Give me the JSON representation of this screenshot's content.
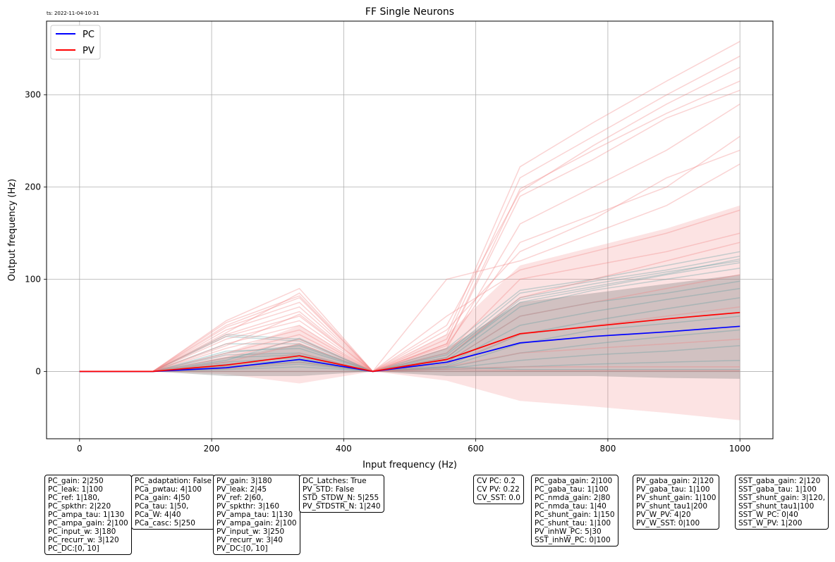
{
  "timestamp": "ts: 2022-11-04-10-31",
  "colors": {
    "pc_mean": "#0000ff",
    "pv_mean": "#ff0000",
    "pc_trials": "#5f9ea0",
    "pv_trials": "#f08080",
    "pc_band": "#808080",
    "pv_band": "#f08080",
    "grid": "#b0b0b0"
  },
  "chart_data": {
    "type": "line",
    "title": "FF Single Neurons",
    "xlabel": "Input frequency (Hz)",
    "ylabel": "Output frequency (Hz)",
    "xlim": [
      -50,
      1050
    ],
    "ylim": [
      -73,
      380
    ],
    "xticks": [
      0,
      200,
      400,
      600,
      800,
      1000
    ],
    "yticks": [
      0,
      100,
      200,
      300
    ],
    "grid": true,
    "legend_position": "top-left",
    "x": [
      0,
      111,
      222,
      333,
      444,
      556,
      667,
      778,
      889,
      1000
    ],
    "series": [
      {
        "name": "PC",
        "values": [
          0,
          0,
          4,
          13,
          0,
          10,
          31,
          38,
          43,
          49
        ]
      },
      {
        "name": "PV",
        "values": [
          0,
          0,
          7,
          17,
          0,
          13,
          41,
          49,
          57,
          64
        ]
      }
    ],
    "bands": [
      {
        "for": "PC",
        "lower": [
          0,
          0,
          -5,
          -5,
          0,
          -5,
          -5,
          -5,
          -7,
          -8
        ],
        "upper": [
          0,
          0,
          15,
          30,
          0,
          25,
          75,
          85,
          95,
          105
        ]
      },
      {
        "for": "PV",
        "lower": [
          0,
          0,
          -3,
          -13,
          0,
          -10,
          -32,
          -38,
          -45,
          -53
        ],
        "upper": [
          0,
          0,
          20,
          50,
          0,
          40,
          115,
          135,
          155,
          180
        ]
      }
    ],
    "trials": {
      "PC": [
        [
          0,
          0,
          40,
          35,
          0,
          20,
          85,
          98,
          110,
          125
        ],
        [
          0,
          0,
          38,
          33,
          0,
          18,
          80,
          95,
          108,
          120
        ],
        [
          0,
          0,
          30,
          30,
          0,
          15,
          75,
          90,
          105,
          118
        ],
        [
          0,
          0,
          22,
          25,
          0,
          12,
          70,
          88,
          100,
          112
        ],
        [
          0,
          0,
          18,
          20,
          0,
          10,
          60,
          75,
          85,
          98
        ],
        [
          0,
          0,
          15,
          18,
          0,
          8,
          50,
          65,
          78,
          90
        ],
        [
          0,
          0,
          10,
          15,
          0,
          6,
          40,
          55,
          68,
          80
        ],
        [
          0,
          0,
          8,
          12,
          0,
          5,
          30,
          45,
          52,
          60
        ],
        [
          0,
          0,
          5,
          10,
          0,
          4,
          20,
          30,
          38,
          45
        ],
        [
          0,
          0,
          3,
          8,
          0,
          3,
          12,
          18,
          22,
          28
        ],
        [
          0,
          0,
          2,
          5,
          0,
          2,
          5,
          8,
          10,
          12
        ],
        [
          0,
          0,
          0,
          0,
          0,
          0,
          0,
          0,
          0,
          0
        ],
        [
          0,
          0,
          12,
          36,
          0,
          25,
          88,
          100,
          115,
          130
        ],
        [
          0,
          0,
          20,
          28,
          0,
          15,
          78,
          92,
          106,
          122
        ],
        [
          0,
          0,
          6,
          10,
          0,
          5,
          2,
          2,
          2,
          2
        ]
      ],
      "PV": [
        [
          0,
          0,
          55,
          90,
          0,
          40,
          222,
          270,
          315,
          358
        ],
        [
          0,
          0,
          53,
          82,
          0,
          35,
          210,
          255,
          300,
          342
        ],
        [
          0,
          0,
          50,
          80,
          0,
          30,
          198,
          240,
          280,
          315
        ],
        [
          0,
          0,
          48,
          75,
          0,
          30,
          190,
          230,
          275,
          305
        ],
        [
          0,
          0,
          45,
          70,
          0,
          25,
          160,
          200,
          240,
          290
        ],
        [
          0,
          0,
          40,
          65,
          0,
          28,
          140,
          170,
          200,
          255
        ],
        [
          0,
          0,
          38,
          60,
          0,
          100,
          120,
          150,
          180,
          225
        ],
        [
          0,
          0,
          35,
          55,
          0,
          60,
          110,
          130,
          150,
          175
        ],
        [
          0,
          0,
          30,
          50,
          0,
          20,
          100,
          115,
          130,
          150
        ],
        [
          0,
          0,
          25,
          45,
          0,
          15,
          80,
          100,
          120,
          140
        ],
        [
          0,
          0,
          20,
          40,
          0,
          10,
          60,
          75,
          90,
          105
        ],
        [
          0,
          0,
          15,
          35,
          0,
          8,
          40,
          50,
          60,
          70
        ],
        [
          0,
          0,
          10,
          30,
          0,
          5,
          20,
          25,
          30,
          35
        ],
        [
          0,
          0,
          5,
          20,
          0,
          3,
          5,
          5,
          5,
          5
        ],
        [
          0,
          0,
          3,
          10,
          0,
          2,
          1,
          1,
          1,
          1
        ],
        [
          0,
          0,
          0,
          0,
          0,
          0,
          0,
          0,
          0,
          0
        ],
        [
          0,
          0,
          42,
          85,
          0,
          50,
          195,
          245,
          290,
          330
        ],
        [
          0,
          0,
          28,
          62,
          0,
          45,
          130,
          165,
          210,
          240
        ]
      ]
    }
  },
  "param_boxes": [
    "PC_gain: 2|250\nPC_leak: 1|100\nPC_ref: 1|180,\nPC_spkthr: 2|220\nPC_ampa_tau: 1|130\nPC_ampa_gain: 2|100\nPC_input_w: 3|180\nPC_recurr_w: 3|120\nPC_DC:[0, 10]",
    "PC_adaptation: False\nPCa_pwtau: 4|100\nPCa_gain: 4|50\nPCa_tau: 1|50,\nPCa_W: 4|40\nPCa_casc: 5|250",
    "PV_gain: 3|180\nPV_leak: 2|45\nPV_ref: 2|60,\nPV_spkthr: 3|160\nPV_ampa_tau: 1|130\nPV_ampa_gain: 2|100\nPV_input_w: 3|250\nPV_recurr_w: 3|40\nPV_DC:[0, 10]",
    "DC_Latches: True\nPV_STD: False\nSTD_STDW_N: 5|255\nPV_STDSTR_N: 1|240",
    "CV PC: 0.2\nCV PV: 0.22\nCV_SST: 0.0",
    "PC_gaba_gain: 2|100\nPC_gaba_tau: 1|100\nPC_nmda_gain: 2|80\nPC_nmda_tau: 1|40\nPC_shunt_gain: 1|150\nPC_shunt_tau: 1|100\nPV_inhW_PC: 5|30\nSST_inhW_PC: 0|100",
    "PV_gaba_gain: 2|120\nPV_gaba_tau: 1|100\nPV_shunt_gain: 1|100\nPV_shunt_tau1|200\nPV_W_PV: 4|20\nPV_W_SST: 0|100",
    "SST_gaba_gain: 2|120\nSST_gaba_tau: 1|100\nSST_shunt_gain: 3|120,\nSST_shunt_tau1|100\nSST_W_PC: 0|40\nSST_W_PV: 1|200"
  ]
}
